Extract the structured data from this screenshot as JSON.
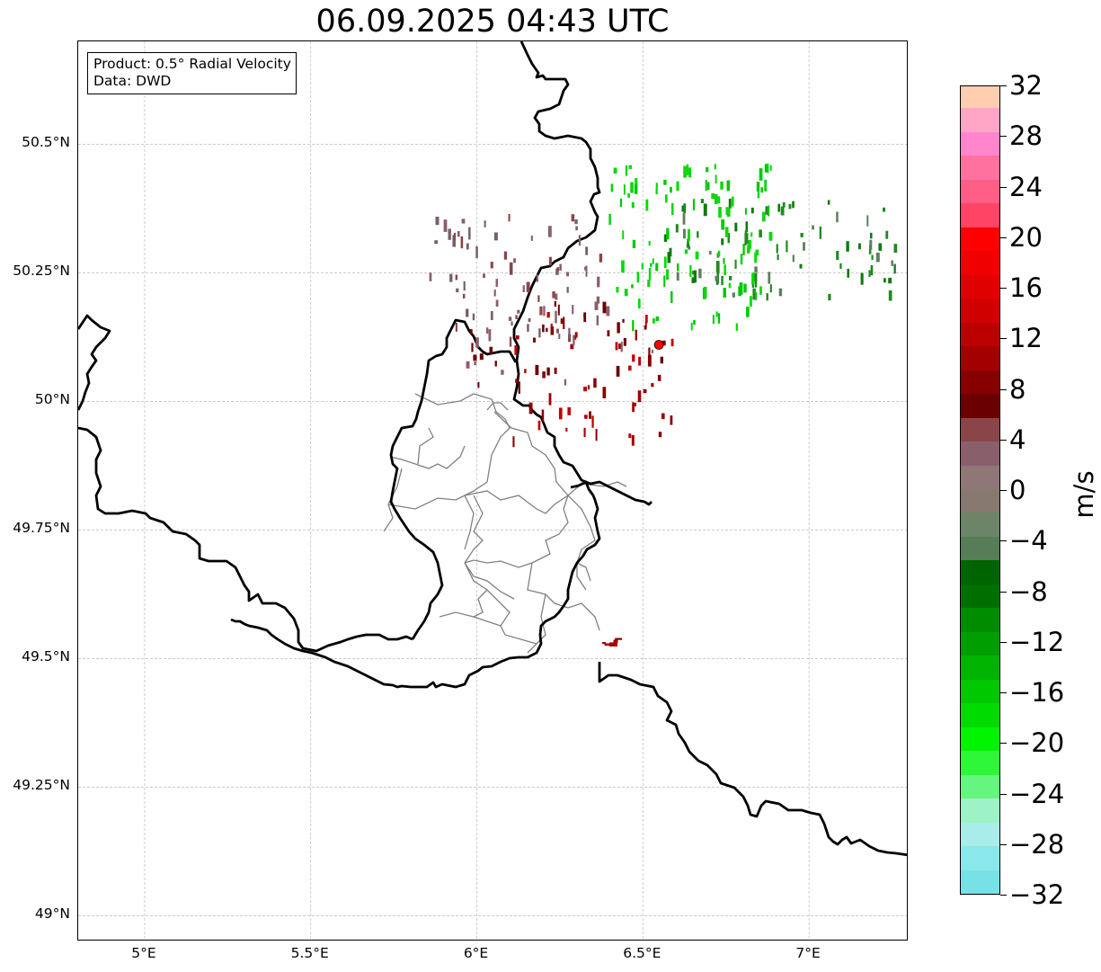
{
  "title": "06.09.2025 04:43 UTC",
  "info": {
    "product": "Product: 0.5° Radial Velocity",
    "source": "Data: DWD"
  },
  "map": {
    "lat_ticks": [
      "50.5°N",
      "50.25°N",
      "50°N",
      "49.75°N",
      "49.5°N",
      "49.25°N",
      "49°N"
    ],
    "lon_ticks": [
      "5°E",
      "5.5°E",
      "6°E",
      "6.5°E",
      "7°E"
    ],
    "extent": {
      "lon_min": 4.8,
      "lon_max": 7.3,
      "lat_min": 48.95,
      "lat_max": 50.7
    },
    "radar_site": {
      "lon": 6.548,
      "lat": 50.11,
      "color": "#ff0000"
    },
    "gridlines": true
  },
  "colorbar": {
    "unit": "m/s",
    "min": -32,
    "max": 32,
    "tick_labels": [
      "32",
      "28",
      "24",
      "20",
      "16",
      "12",
      "8",
      "4",
      "0",
      "−4",
      "−8",
      "−12",
      "−16",
      "−20",
      "−24",
      "−28",
      "−32"
    ],
    "colors_bottom_to_top": [
      "#77e1e6",
      "#8ae8ea",
      "#a8ede9",
      "#9df2c6",
      "#66f57f",
      "#2ef739",
      "#00f500",
      "#00dc00",
      "#00c800",
      "#00b300",
      "#009e00",
      "#008c00",
      "#006f00",
      "#006400",
      "#567d56",
      "#6c8468",
      "#87796f",
      "#8f7677",
      "#8a5f6c",
      "#8a4549",
      "#6b0000",
      "#870000",
      "#a30000",
      "#bc0000",
      "#d10000",
      "#e10000",
      "#f00000",
      "#ff0000",
      "#ff4466",
      "#ff5e87",
      "#ff72a0",
      "#ff86cd",
      "#ffa6c6",
      "#ffcdb0"
    ]
  }
}
